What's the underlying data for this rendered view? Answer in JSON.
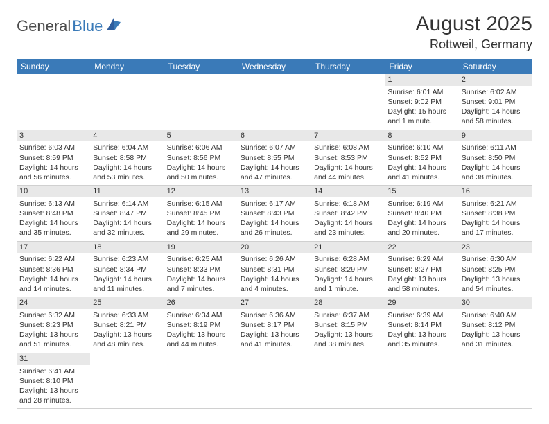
{
  "logo": {
    "general": "General",
    "blue": "Blue"
  },
  "title": "August 2025",
  "location": "Rottweil, Germany",
  "colors": {
    "header_bg": "#3a7ab8",
    "header_text": "#ffffff",
    "daynum_bg": "#e8e8e8",
    "border": "#d0d0d0",
    "text": "#333333"
  },
  "weekdays": [
    "Sunday",
    "Monday",
    "Tuesday",
    "Wednesday",
    "Thursday",
    "Friday",
    "Saturday"
  ],
  "weeks": [
    [
      null,
      null,
      null,
      null,
      null,
      {
        "n": "1",
        "sr": "Sunrise: 6:01 AM",
        "ss": "Sunset: 9:02 PM",
        "dl": "Daylight: 15 hours and 1 minute."
      },
      {
        "n": "2",
        "sr": "Sunrise: 6:02 AM",
        "ss": "Sunset: 9:01 PM",
        "dl": "Daylight: 14 hours and 58 minutes."
      }
    ],
    [
      {
        "n": "3",
        "sr": "Sunrise: 6:03 AM",
        "ss": "Sunset: 8:59 PM",
        "dl": "Daylight: 14 hours and 56 minutes."
      },
      {
        "n": "4",
        "sr": "Sunrise: 6:04 AM",
        "ss": "Sunset: 8:58 PM",
        "dl": "Daylight: 14 hours and 53 minutes."
      },
      {
        "n": "5",
        "sr": "Sunrise: 6:06 AM",
        "ss": "Sunset: 8:56 PM",
        "dl": "Daylight: 14 hours and 50 minutes."
      },
      {
        "n": "6",
        "sr": "Sunrise: 6:07 AM",
        "ss": "Sunset: 8:55 PM",
        "dl": "Daylight: 14 hours and 47 minutes."
      },
      {
        "n": "7",
        "sr": "Sunrise: 6:08 AM",
        "ss": "Sunset: 8:53 PM",
        "dl": "Daylight: 14 hours and 44 minutes."
      },
      {
        "n": "8",
        "sr": "Sunrise: 6:10 AM",
        "ss": "Sunset: 8:52 PM",
        "dl": "Daylight: 14 hours and 41 minutes."
      },
      {
        "n": "9",
        "sr": "Sunrise: 6:11 AM",
        "ss": "Sunset: 8:50 PM",
        "dl": "Daylight: 14 hours and 38 minutes."
      }
    ],
    [
      {
        "n": "10",
        "sr": "Sunrise: 6:13 AM",
        "ss": "Sunset: 8:48 PM",
        "dl": "Daylight: 14 hours and 35 minutes."
      },
      {
        "n": "11",
        "sr": "Sunrise: 6:14 AM",
        "ss": "Sunset: 8:47 PM",
        "dl": "Daylight: 14 hours and 32 minutes."
      },
      {
        "n": "12",
        "sr": "Sunrise: 6:15 AM",
        "ss": "Sunset: 8:45 PM",
        "dl": "Daylight: 14 hours and 29 minutes."
      },
      {
        "n": "13",
        "sr": "Sunrise: 6:17 AM",
        "ss": "Sunset: 8:43 PM",
        "dl": "Daylight: 14 hours and 26 minutes."
      },
      {
        "n": "14",
        "sr": "Sunrise: 6:18 AM",
        "ss": "Sunset: 8:42 PM",
        "dl": "Daylight: 14 hours and 23 minutes."
      },
      {
        "n": "15",
        "sr": "Sunrise: 6:19 AM",
        "ss": "Sunset: 8:40 PM",
        "dl": "Daylight: 14 hours and 20 minutes."
      },
      {
        "n": "16",
        "sr": "Sunrise: 6:21 AM",
        "ss": "Sunset: 8:38 PM",
        "dl": "Daylight: 14 hours and 17 minutes."
      }
    ],
    [
      {
        "n": "17",
        "sr": "Sunrise: 6:22 AM",
        "ss": "Sunset: 8:36 PM",
        "dl": "Daylight: 14 hours and 14 minutes."
      },
      {
        "n": "18",
        "sr": "Sunrise: 6:23 AM",
        "ss": "Sunset: 8:34 PM",
        "dl": "Daylight: 14 hours and 11 minutes."
      },
      {
        "n": "19",
        "sr": "Sunrise: 6:25 AM",
        "ss": "Sunset: 8:33 PM",
        "dl": "Daylight: 14 hours and 7 minutes."
      },
      {
        "n": "20",
        "sr": "Sunrise: 6:26 AM",
        "ss": "Sunset: 8:31 PM",
        "dl": "Daylight: 14 hours and 4 minutes."
      },
      {
        "n": "21",
        "sr": "Sunrise: 6:28 AM",
        "ss": "Sunset: 8:29 PM",
        "dl": "Daylight: 14 hours and 1 minute."
      },
      {
        "n": "22",
        "sr": "Sunrise: 6:29 AM",
        "ss": "Sunset: 8:27 PM",
        "dl": "Daylight: 13 hours and 58 minutes."
      },
      {
        "n": "23",
        "sr": "Sunrise: 6:30 AM",
        "ss": "Sunset: 8:25 PM",
        "dl": "Daylight: 13 hours and 54 minutes."
      }
    ],
    [
      {
        "n": "24",
        "sr": "Sunrise: 6:32 AM",
        "ss": "Sunset: 8:23 PM",
        "dl": "Daylight: 13 hours and 51 minutes."
      },
      {
        "n": "25",
        "sr": "Sunrise: 6:33 AM",
        "ss": "Sunset: 8:21 PM",
        "dl": "Daylight: 13 hours and 48 minutes."
      },
      {
        "n": "26",
        "sr": "Sunrise: 6:34 AM",
        "ss": "Sunset: 8:19 PM",
        "dl": "Daylight: 13 hours and 44 minutes."
      },
      {
        "n": "27",
        "sr": "Sunrise: 6:36 AM",
        "ss": "Sunset: 8:17 PM",
        "dl": "Daylight: 13 hours and 41 minutes."
      },
      {
        "n": "28",
        "sr": "Sunrise: 6:37 AM",
        "ss": "Sunset: 8:15 PM",
        "dl": "Daylight: 13 hours and 38 minutes."
      },
      {
        "n": "29",
        "sr": "Sunrise: 6:39 AM",
        "ss": "Sunset: 8:14 PM",
        "dl": "Daylight: 13 hours and 35 minutes."
      },
      {
        "n": "30",
        "sr": "Sunrise: 6:40 AM",
        "ss": "Sunset: 8:12 PM",
        "dl": "Daylight: 13 hours and 31 minutes."
      }
    ],
    [
      {
        "n": "31",
        "sr": "Sunrise: 6:41 AM",
        "ss": "Sunset: 8:10 PM",
        "dl": "Daylight: 13 hours and 28 minutes."
      },
      null,
      null,
      null,
      null,
      null,
      null
    ]
  ]
}
